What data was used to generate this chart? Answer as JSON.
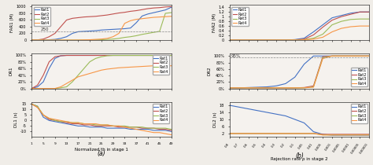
{
  "colors": {
    "Rat1": "#4472c4",
    "Rat2": "#c0504d",
    "Rat3": "#9bbb59",
    "Rat4": "#f79646"
  },
  "panel_a": {
    "xlabel": "Normalized th in stage 1",
    "xlabel_label": "(a)",
    "th_values": [
      1,
      3,
      5,
      7,
      9,
      11,
      13,
      15,
      17,
      19,
      21,
      23,
      25,
      27,
      29,
      31,
      33,
      35,
      37,
      39,
      41,
      43,
      45,
      47,
      49
    ],
    "FAR1": {
      "Rat1": [
        0,
        0,
        5,
        10,
        20,
        50,
        100,
        200,
        250,
        260,
        270,
        280,
        300,
        310,
        320,
        330,
        340,
        360,
        520,
        720,
        780,
        820,
        860,
        900,
        980
      ],
      "Rat2": [
        0,
        5,
        30,
        100,
        200,
        400,
        600,
        650,
        670,
        690,
        700,
        710,
        730,
        750,
        780,
        810,
        830,
        860,
        880,
        910,
        940,
        960,
        970,
        990,
        1000
      ],
      "Rat3": [
        0,
        0,
        0,
        0,
        0,
        0,
        0,
        0,
        0,
        0,
        0,
        5,
        10,
        20,
        30,
        50,
        80,
        100,
        130,
        170,
        200,
        230,
        260,
        800,
        820
      ],
      "Rat4": [
        0,
        0,
        0,
        0,
        0,
        0,
        0,
        0,
        0,
        5,
        10,
        20,
        30,
        50,
        100,
        200,
        500,
        580,
        620,
        640,
        660,
        680,
        690,
        700,
        710
      ]
    },
    "FAR1_ylim": [
      0,
      1050
    ],
    "FAR1_yticks": [
      0,
      200,
      400,
      600,
      800,
      1000
    ],
    "FAR1_ytick_labels": [
      "0",
      "200",
      "400",
      "600",
      "800",
      "1000"
    ],
    "FAR1_hline": 250,
    "DR1": {
      "Rat1": [
        0,
        5,
        20,
        60,
        90,
        98,
        99,
        99,
        99,
        99,
        99,
        99,
        99,
        99,
        99,
        99,
        99,
        99,
        99,
        99,
        99,
        99,
        99,
        99,
        99
      ],
      "Rat2": [
        0,
        10,
        40,
        80,
        95,
        98,
        99,
        99,
        99,
        99,
        99,
        99,
        99,
        99,
        99,
        99,
        99,
        99,
        99,
        99,
        99,
        99,
        99,
        99,
        99
      ],
      "Rat3": [
        0,
        0,
        0,
        0,
        0,
        2,
        5,
        20,
        40,
        60,
        80,
        90,
        95,
        98,
        99,
        99,
        99,
        99,
        99,
        99,
        99,
        99,
        99,
        99,
        99
      ],
      "Rat4": [
        0,
        0,
        0,
        0,
        0,
        5,
        15,
        25,
        35,
        40,
        45,
        50,
        55,
        58,
        60,
        62,
        63,
        64,
        65,
        66,
        67,
        68,
        68,
        68,
        68
      ]
    },
    "DR1_ylim": [
      0,
      105
    ],
    "DR1_yticks": [
      0,
      20,
      40,
      60,
      80,
      100
    ],
    "DR1_ytick_labels": [
      "0%",
      "20%",
      "40%",
      "60%",
      "80%",
      "100%"
    ],
    "DL1": {
      "Rat1": [
        15,
        13,
        3,
        0,
        -1,
        -2,
        -3,
        -4,
        -5,
        -5,
        -6,
        -6,
        -6,
        -7,
        -7,
        -7,
        -7,
        -8,
        -8,
        -8,
        -8,
        -9,
        -9,
        -9,
        -10
      ],
      "Rat2": [
        15,
        12,
        5,
        1,
        0,
        -1,
        -2,
        -3,
        -3,
        -4,
        -4,
        -5,
        -5,
        -5,
        -5,
        -6,
        -6,
        -6,
        -6,
        -7,
        -7,
        -7,
        -8,
        -8,
        -9
      ],
      "Rat3": [
        15,
        13,
        5,
        2,
        0,
        -1,
        -1,
        -2,
        -2,
        -3,
        -3,
        -4,
        -4,
        -4,
        -5,
        -5,
        -5,
        -6,
        -6,
        -6,
        -7,
        -7,
        -7,
        -7,
        -8
      ],
      "Rat4": [
        15,
        12,
        5,
        2,
        1,
        0,
        -1,
        -2,
        -2,
        -3,
        -3,
        -3,
        -4,
        -4,
        -5,
        -5,
        -6,
        -7,
        -8,
        -9,
        -10,
        -11,
        -11,
        -12,
        -13
      ]
    },
    "DL1_ylim": [
      -15,
      17
    ],
    "DL1_yticks": [
      -10,
      -5,
      0,
      5,
      10,
      15
    ],
    "DL1_ytick_labels": [
      "-10",
      "-5",
      "0",
      "5",
      "10",
      "15"
    ],
    "xticks": [
      1,
      5,
      9,
      13,
      17,
      21,
      25,
      29,
      33,
      37,
      41,
      45,
      49
    ],
    "xtick_labels": [
      "1",
      "5",
      "9",
      "13",
      "17",
      "21",
      "25",
      "29",
      "33",
      "37",
      "41",
      "45",
      "49"
    ]
  },
  "panel_b": {
    "xlabel": "Rejection rate ρ in stage 2",
    "xlabel_label": "(b)",
    "rho_values": [
      0.8,
      0.7,
      0.6,
      0.5,
      0.4,
      0.3,
      0.2,
      0.1,
      0.05,
      0.01,
      0.005,
      0.001,
      0.0005,
      0.0001,
      5e-05,
      1e-05
    ],
    "FAR2": {
      "Rat1": [
        0,
        0,
        0,
        0,
        0,
        0,
        0,
        0.02,
        0.08,
        0.35,
        0.65,
        0.95,
        1.05,
        1.15,
        1.2,
        1.2
      ],
      "Rat2": [
        0,
        0,
        0,
        0,
        0,
        0,
        0,
        0.01,
        0.04,
        0.22,
        0.55,
        0.85,
        1.0,
        1.1,
        1.2,
        1.2
      ],
      "Rat3": [
        0,
        0,
        0,
        0,
        0,
        0,
        0,
        0.005,
        0.02,
        0.08,
        0.25,
        0.65,
        0.8,
        0.88,
        0.9,
        0.9
      ],
      "Rat4": [
        0,
        0,
        0,
        0,
        0,
        0,
        0,
        0.003,
        0.01,
        0.04,
        0.12,
        0.35,
        0.5,
        0.57,
        0.6,
        0.6
      ]
    },
    "FAR2_ylim": [
      0,
      1.5
    ],
    "FAR2_yticks": [
      0,
      0.2,
      0.4,
      0.6,
      0.8,
      1.0,
      1.2,
      1.4
    ],
    "FAR2_ytick_labels": [
      "0",
      "0.2",
      "0.4",
      "0.6",
      "0.8",
      "1",
      "1.2",
      "1.4"
    ],
    "DR2": {
      "Rat1": [
        2,
        2,
        3,
        4,
        5,
        8,
        15,
        35,
        75,
        100,
        100,
        100,
        100,
        100,
        100,
        100
      ],
      "Rat2": [
        2,
        2,
        2,
        2,
        2,
        2,
        2,
        2,
        3,
        8,
        98,
        100,
        100,
        100,
        100,
        100
      ],
      "Rat3": [
        2,
        2,
        2,
        2,
        2,
        2,
        2,
        2,
        2,
        5,
        95,
        100,
        100,
        100,
        100,
        100
      ],
      "Rat4": [
        2,
        2,
        2,
        2,
        2,
        2,
        2,
        2,
        2,
        4,
        92,
        100,
        100,
        100,
        100,
        100
      ]
    },
    "DR2_ylim": [
      0,
      108
    ],
    "DR2_yticks": [
      0,
      20,
      40,
      60,
      80,
      100
    ],
    "DR2_ytick_labels": [
      "0%",
      "20%",
      "40%",
      "60%",
      "80%",
      "100%"
    ],
    "DR2_hline": 95,
    "DL2": {
      "Rat1": [
        18,
        17,
        16,
        15,
        14,
        13,
        12,
        10,
        8,
        3,
        1.5,
        1.0,
        1.0,
        1.0,
        1.0,
        1.0
      ],
      "Rat2": [
        2,
        2,
        2,
        2,
        2,
        2,
        2,
        2,
        2,
        2,
        1.5,
        1.5,
        1.5,
        1.5,
        1.5,
        1.5
      ],
      "Rat3": [
        2,
        2,
        2,
        2,
        2,
        2,
        2,
        2,
        2,
        2,
        1.2,
        1.2,
        1.2,
        1.2,
        1.2,
        1.2
      ],
      "Rat4": [
        2,
        2,
        2,
        2,
        2,
        2,
        2,
        2,
        2,
        2,
        1.1,
        1.1,
        1.1,
        1.1,
        1.1,
        1.1
      ]
    },
    "DL2_ylim": [
      0,
      20
    ],
    "DL2_yticks": [
      2,
      6,
      10,
      14,
      18
    ],
    "DL2_ytick_labels": [
      "2",
      "6",
      "10",
      "14",
      "18"
    ],
    "rho_xtick_labels": [
      "0.8",
      "0.7",
      "0.6",
      "0.5",
      "0.4",
      "0.3",
      "0.2",
      "0.1",
      "0.05",
      "0.01",
      "0.005",
      "0.001",
      "0.0005",
      "0.0001",
      "0.00005",
      "0.00001"
    ]
  },
  "legend_order": [
    "Rat1",
    "Rat2",
    "Rat3",
    "Rat4"
  ]
}
